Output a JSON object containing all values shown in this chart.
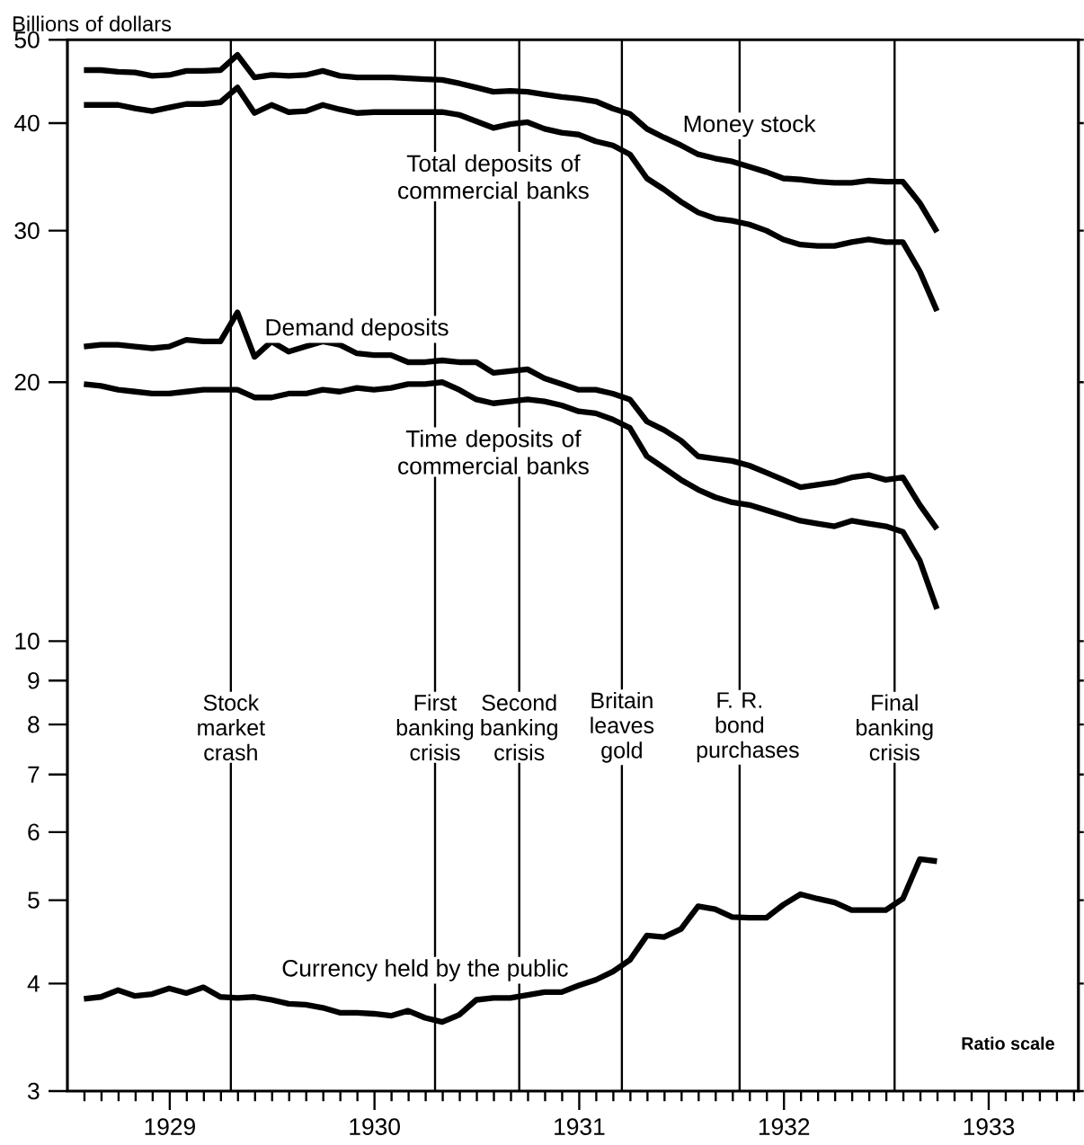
{
  "chart_data": {
    "type": "line",
    "ylabel": "Billions of dollars",
    "x": [
      "1929-01-31",
      "1929-02-28",
      "1929-03-31",
      "1929-04-30",
      "1929-05-31",
      "1929-06-30",
      "1929-07-31",
      "1929-08-31",
      "1929-09-30",
      "1929-10-31",
      "1929-11-30",
      "1929-12-31",
      "1930-01-31",
      "1930-02-28",
      "1930-03-31",
      "1930-04-30",
      "1930-05-31",
      "1930-06-30",
      "1930-07-31",
      "1930-08-31",
      "1930-09-30",
      "1930-10-31",
      "1930-11-30",
      "1930-12-31",
      "1931-01-31",
      "1931-02-28",
      "1931-03-31",
      "1931-04-30",
      "1931-05-31",
      "1931-06-30",
      "1931-07-31",
      "1931-08-31",
      "1931-09-30",
      "1931-10-31",
      "1931-11-30",
      "1931-12-31",
      "1932-01-31",
      "1932-02-29",
      "1932-03-31",
      "1932-04-30",
      "1932-05-31",
      "1932-06-30",
      "1932-07-31",
      "1932-08-31",
      "1932-09-30",
      "1932-10-31",
      "1932-11-30",
      "1932-12-31",
      "1933-01-31",
      "1933-02-28",
      "1933-03-31"
    ],
    "series": [
      {
        "name": "Money stock",
        "color": "#000000",
        "values": [
          46.1,
          46.1,
          45.9,
          45.8,
          45.4,
          45.5,
          46.0,
          46.0,
          46.1,
          48.0,
          45.2,
          45.5,
          45.4,
          45.5,
          46.0,
          45.4,
          45.2,
          45.2,
          45.2,
          45.1,
          45.0,
          44.9,
          44.5,
          44.0,
          43.5,
          43.6,
          43.5,
          43.2,
          42.9,
          42.7,
          42.4,
          41.6,
          41.0,
          39.4,
          38.5,
          37.7,
          36.8,
          36.4,
          36.1,
          35.6,
          35.1,
          34.5,
          34.4,
          34.2,
          34.1,
          34.1,
          34.3,
          34.2,
          34.2,
          32.3,
          29.9
        ]
      },
      {
        "name": "Total deposits of commercial banks",
        "color": "#000000",
        "values": [
          42.0,
          42.0,
          42.0,
          41.6,
          41.3,
          41.7,
          42.1,
          42.1,
          42.3,
          44.0,
          41.1,
          42.0,
          41.2,
          41.3,
          42.0,
          41.5,
          41.1,
          41.2,
          41.2,
          41.2,
          41.2,
          41.2,
          40.9,
          40.2,
          39.5,
          39.9,
          40.1,
          39.4,
          39.0,
          38.8,
          38.1,
          37.7,
          36.8,
          34.5,
          33.5,
          32.4,
          31.5,
          31.0,
          30.8,
          30.5,
          30.0,
          29.3,
          28.9,
          28.8,
          28.8,
          29.1,
          29.3,
          29.1,
          29.1,
          26.9,
          24.2
        ]
      },
      {
        "name": "Demand deposits",
        "color": "#000000",
        "values": [
          22.0,
          22.1,
          22.1,
          22.0,
          21.9,
          22.0,
          22.4,
          22.3,
          22.3,
          24.1,
          21.4,
          22.3,
          21.7,
          22.0,
          22.3,
          22.1,
          21.6,
          21.5,
          21.5,
          21.1,
          21.1,
          21.2,
          21.1,
          21.1,
          20.5,
          20.6,
          20.7,
          20.2,
          19.9,
          19.6,
          19.6,
          19.4,
          19.1,
          18.0,
          17.6,
          17.1,
          16.4,
          16.3,
          16.2,
          16.0,
          15.7,
          15.4,
          15.1,
          15.2,
          15.3,
          15.5,
          15.6,
          15.4,
          15.5,
          14.4,
          13.5
        ]
      },
      {
        "name": "Time deposits of commercial banks",
        "color": "#000000",
        "values": [
          19.9,
          19.8,
          19.6,
          19.5,
          19.4,
          19.4,
          19.5,
          19.6,
          19.6,
          19.6,
          19.2,
          19.2,
          19.4,
          19.4,
          19.6,
          19.5,
          19.7,
          19.6,
          19.7,
          19.9,
          19.9,
          20.0,
          19.6,
          19.1,
          18.9,
          19.0,
          19.1,
          19.0,
          18.8,
          18.5,
          18.4,
          18.1,
          17.7,
          16.4,
          15.9,
          15.4,
          15.0,
          14.7,
          14.5,
          14.4,
          14.2,
          14.0,
          13.8,
          13.7,
          13.6,
          13.8,
          13.7,
          13.6,
          13.4,
          12.4,
          10.9
        ]
      },
      {
        "name": "Currency held by the public",
        "color": "#000000",
        "values": [
          3.84,
          3.86,
          3.93,
          3.87,
          3.89,
          3.95,
          3.9,
          3.96,
          3.86,
          3.85,
          3.86,
          3.83,
          3.79,
          3.78,
          3.75,
          3.7,
          3.7,
          3.69,
          3.67,
          3.72,
          3.65,
          3.61,
          3.68,
          3.83,
          3.85,
          3.85,
          3.88,
          3.91,
          3.91,
          3.98,
          4.04,
          4.13,
          4.26,
          4.55,
          4.53,
          4.63,
          4.92,
          4.88,
          4.78,
          4.77,
          4.77,
          4.94,
          5.08,
          5.02,
          4.97,
          4.87,
          4.87,
          4.87,
          5.02,
          5.58,
          5.55
        ]
      }
    ],
    "log": true,
    "ylim": [
      3,
      50
    ],
    "yticks": [
      3,
      4,
      5,
      6,
      7,
      8,
      9,
      10,
      20,
      30,
      40,
      50
    ],
    "xlim": [
      "1929-01-01",
      "1933-12-09"
    ],
    "xticks": [
      {
        "value": "1929-02-01",
        "label": null
      },
      {
        "value": "1929-03-01",
        "label": null
      },
      {
        "value": "1929-04-01",
        "label": null
      },
      {
        "value": "1929-05-01",
        "label": null
      },
      {
        "value": "1929-06-01",
        "label": null
      },
      {
        "value": "1929-07-01",
        "label": "1929"
      },
      {
        "value": "1929-08-01",
        "label": null
      },
      {
        "value": "1929-09-01",
        "label": null
      },
      {
        "value": "1929-10-01",
        "label": null
      },
      {
        "value": "1929-11-01",
        "label": null
      },
      {
        "value": "1929-12-01",
        "label": null
      },
      {
        "value": "1930-01-01",
        "label": null
      },
      {
        "value": "1930-02-01",
        "label": null
      },
      {
        "value": "1930-03-01",
        "label": null
      },
      {
        "value": "1930-04-01",
        "label": null
      },
      {
        "value": "1930-05-01",
        "label": null
      },
      {
        "value": "1930-06-01",
        "label": null
      },
      {
        "value": "1930-07-01",
        "label": "1930"
      },
      {
        "value": "1930-08-01",
        "label": null
      },
      {
        "value": "1930-09-01",
        "label": null
      },
      {
        "value": "1930-10-01",
        "label": null
      },
      {
        "value": "1930-11-01",
        "label": null
      },
      {
        "value": "1930-12-01",
        "label": null
      },
      {
        "value": "1931-01-01",
        "label": null
      },
      {
        "value": "1931-02-01",
        "label": null
      },
      {
        "value": "1931-03-01",
        "label": null
      },
      {
        "value": "1931-04-01",
        "label": null
      },
      {
        "value": "1931-05-01",
        "label": null
      },
      {
        "value": "1931-06-01",
        "label": null
      },
      {
        "value": "1931-07-01",
        "label": "1931"
      },
      {
        "value": "1931-08-01",
        "label": null
      },
      {
        "value": "1931-09-01",
        "label": null
      },
      {
        "value": "1931-10-01",
        "label": null
      },
      {
        "value": "1931-11-01",
        "label": null
      },
      {
        "value": "1931-12-01",
        "label": null
      },
      {
        "value": "1932-01-01",
        "label": null
      },
      {
        "value": "1932-02-01",
        "label": null
      },
      {
        "value": "1932-03-01",
        "label": null
      },
      {
        "value": "1932-04-01",
        "label": null
      },
      {
        "value": "1932-05-01",
        "label": null
      },
      {
        "value": "1932-06-01",
        "label": null
      },
      {
        "value": "1932-07-01",
        "label": "1932"
      },
      {
        "value": "1932-08-01",
        "label": null
      },
      {
        "value": "1932-09-01",
        "label": null
      },
      {
        "value": "1932-10-01",
        "label": null
      },
      {
        "value": "1932-11-01",
        "label": null
      },
      {
        "value": "1932-12-01",
        "label": null
      },
      {
        "value": "1933-01-01",
        "label": null
      },
      {
        "value": "1933-02-01",
        "label": null
      },
      {
        "value": "1933-03-01",
        "label": null
      },
      {
        "value": "1933-04-01",
        "label": null
      },
      {
        "value": "1933-05-01",
        "label": null
      },
      {
        "value": "1933-06-01",
        "label": null
      },
      {
        "value": "1933-07-01",
        "label": "1933"
      },
      {
        "value": "1933-08-01",
        "label": null
      },
      {
        "value": "1933-09-01",
        "label": null
      },
      {
        "value": "1933-10-01",
        "label": null
      },
      {
        "value": "1933-11-01",
        "label": null
      },
      {
        "value": "1933-12-01",
        "label": null
      }
    ],
    "ref_lines": [
      {
        "axis": "x",
        "value": "1929-10-19",
        "label": "Stock market crash"
      },
      {
        "axis": "x",
        "value": "1930-10-18",
        "label": "First banking crisis"
      },
      {
        "axis": "x",
        "value": "1931-03-16",
        "label": "Second banking crisis"
      },
      {
        "axis": "x",
        "value": "1931-09-16",
        "label": "Britain leaves gold"
      },
      {
        "axis": "x",
        "value": "1932-04-13",
        "label": "F. R. bond purchases"
      },
      {
        "axis": "x",
        "value": "1933-01-16",
        "label": "Final banking crisis"
      }
    ],
    "annotations": [
      "Ratio scale"
    ]
  }
}
